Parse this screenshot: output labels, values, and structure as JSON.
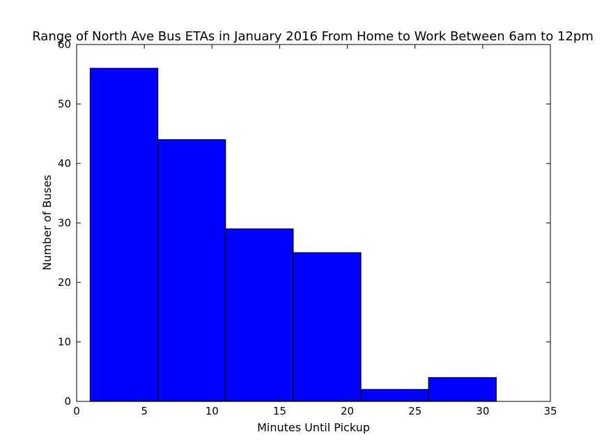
{
  "chart_data": {
    "type": "histogram",
    "title": "Range of North Ave Bus ETAs in January 2016 From Home to Work Between 6am to 12pm",
    "xlabel": "Minutes Until Pickup",
    "ylabel": "Number of Buses",
    "xlim": [
      0,
      35
    ],
    "ylim": [
      0,
      60
    ],
    "xticks": [
      "0",
      "5",
      "10",
      "15",
      "20",
      "25",
      "30",
      "35"
    ],
    "yticks": [
      "0",
      "10",
      "20",
      "30",
      "40",
      "50",
      "60"
    ],
    "bins": [
      {
        "x0": 1,
        "x1": 6,
        "value": 56
      },
      {
        "x0": 6,
        "x1": 11,
        "value": 44
      },
      {
        "x0": 11,
        "x1": 16,
        "value": 29
      },
      {
        "x0": 16,
        "x1": 21,
        "value": 25
      },
      {
        "x0": 21,
        "x1": 26,
        "value": 2
      },
      {
        "x0": 26,
        "x1": 31,
        "value": 4
      }
    ],
    "bar_color": "#0000ff",
    "edge_color": "#000000",
    "grid": false
  }
}
